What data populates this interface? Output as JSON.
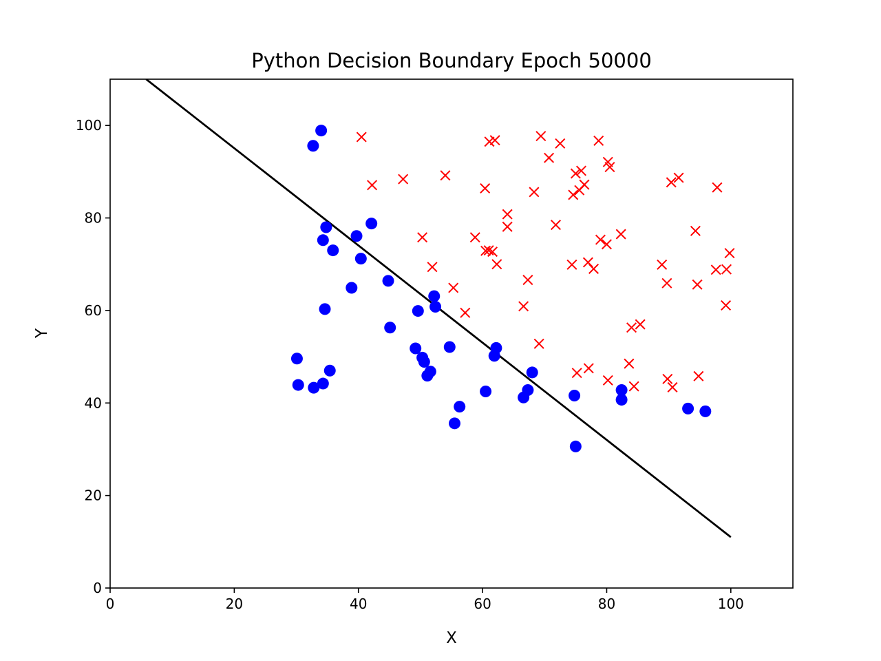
{
  "chart_data": {
    "type": "scatter",
    "title": "Python Decision Boundary Epoch 50000",
    "xlabel": "X",
    "ylabel": "Y",
    "xlim": [
      0,
      110
    ],
    "ylim": [
      0,
      110
    ],
    "xticks": [
      "0",
      "20",
      "40",
      "60",
      "80",
      "100"
    ],
    "yticks": [
      "0",
      "20",
      "40",
      "60",
      "80",
      "100"
    ],
    "grid": false,
    "series": [
      {
        "marker": "circle",
        "color": "#0000ff",
        "points": [
          [
            34.0,
            98.9
          ],
          [
            32.7,
            95.6
          ],
          [
            34.8,
            78.0
          ],
          [
            42.1,
            78.8
          ],
          [
            39.7,
            76.1
          ],
          [
            34.3,
            75.2
          ],
          [
            35.9,
            73.0
          ],
          [
            40.4,
            71.2
          ],
          [
            44.8,
            66.4
          ],
          [
            38.9,
            64.9
          ],
          [
            52.2,
            63.1
          ],
          [
            52.4,
            60.8
          ],
          [
            34.6,
            60.3
          ],
          [
            49.6,
            59.9
          ],
          [
            45.1,
            56.3
          ],
          [
            54.7,
            52.1
          ],
          [
            62.2,
            51.9
          ],
          [
            49.2,
            51.8
          ],
          [
            61.9,
            50.2
          ],
          [
            30.1,
            49.6
          ],
          [
            50.3,
            49.8
          ],
          [
            50.6,
            48.9
          ],
          [
            35.4,
            47.0
          ],
          [
            51.6,
            46.8
          ],
          [
            68.0,
            46.6
          ],
          [
            51.1,
            45.9
          ],
          [
            34.3,
            44.2
          ],
          [
            30.3,
            43.9
          ],
          [
            32.8,
            43.3
          ],
          [
            67.3,
            42.8
          ],
          [
            60.5,
            42.5
          ],
          [
            82.4,
            42.8
          ],
          [
            74.8,
            41.6
          ],
          [
            66.6,
            41.2
          ],
          [
            82.4,
            40.7
          ],
          [
            56.3,
            39.2
          ],
          [
            93.1,
            38.8
          ],
          [
            95.9,
            38.2
          ],
          [
            55.5,
            35.6
          ],
          [
            75.0,
            30.6
          ]
        ]
      },
      {
        "marker": "x",
        "color": "#ff0000",
        "points": [
          [
            40.5,
            97.5
          ],
          [
            69.4,
            97.7
          ],
          [
            61.1,
            96.5
          ],
          [
            62.0,
            96.8
          ],
          [
            72.5,
            96.1
          ],
          [
            78.7,
            96.7
          ],
          [
            70.7,
            93.0
          ],
          [
            80.2,
            92.1
          ],
          [
            80.5,
            91.0
          ],
          [
            75.9,
            90.2
          ],
          [
            75.0,
            89.6
          ],
          [
            54.0,
            89.2
          ],
          [
            91.6,
            88.7
          ],
          [
            47.2,
            88.4
          ],
          [
            90.4,
            87.7
          ],
          [
            76.4,
            87.2
          ],
          [
            42.2,
            87.1
          ],
          [
            97.8,
            86.6
          ],
          [
            60.4,
            86.4
          ],
          [
            75.6,
            86.0
          ],
          [
            68.3,
            85.6
          ],
          [
            74.6,
            85.0
          ],
          [
            64.0,
            80.8
          ],
          [
            94.3,
            77.2
          ],
          [
            71.8,
            78.5
          ],
          [
            64.0,
            78.1
          ],
          [
            82.3,
            76.5
          ],
          [
            50.3,
            75.8
          ],
          [
            58.8,
            75.8
          ],
          [
            79.0,
            75.3
          ],
          [
            80.0,
            74.3
          ],
          [
            61.0,
            73.0
          ],
          [
            60.5,
            72.9
          ],
          [
            61.6,
            72.7
          ],
          [
            99.8,
            72.4
          ],
          [
            77.0,
            70.4
          ],
          [
            62.3,
            70.0
          ],
          [
            74.4,
            69.9
          ],
          [
            88.9,
            69.9
          ],
          [
            51.9,
            69.4
          ],
          [
            77.9,
            69.0
          ],
          [
            97.6,
            68.8
          ],
          [
            99.3,
            68.9
          ],
          [
            67.3,
            66.6
          ],
          [
            89.7,
            65.9
          ],
          [
            94.6,
            65.6
          ],
          [
            55.3,
            64.9
          ],
          [
            66.6,
            60.9
          ],
          [
            99.2,
            61.1
          ],
          [
            57.2,
            59.5
          ],
          [
            85.4,
            57.0
          ],
          [
            84.0,
            56.3
          ],
          [
            69.1,
            52.8
          ],
          [
            83.6,
            48.5
          ],
          [
            77.1,
            47.5
          ],
          [
            75.2,
            46.5
          ],
          [
            94.8,
            45.8
          ],
          [
            89.8,
            45.2
          ],
          [
            80.2,
            44.9
          ],
          [
            84.4,
            43.6
          ],
          [
            90.6,
            43.4
          ]
        ]
      }
    ],
    "boundary": {
      "color": "#000000",
      "points": [
        [
          5.8,
          110
        ],
        [
          100,
          11.0
        ]
      ]
    }
  }
}
